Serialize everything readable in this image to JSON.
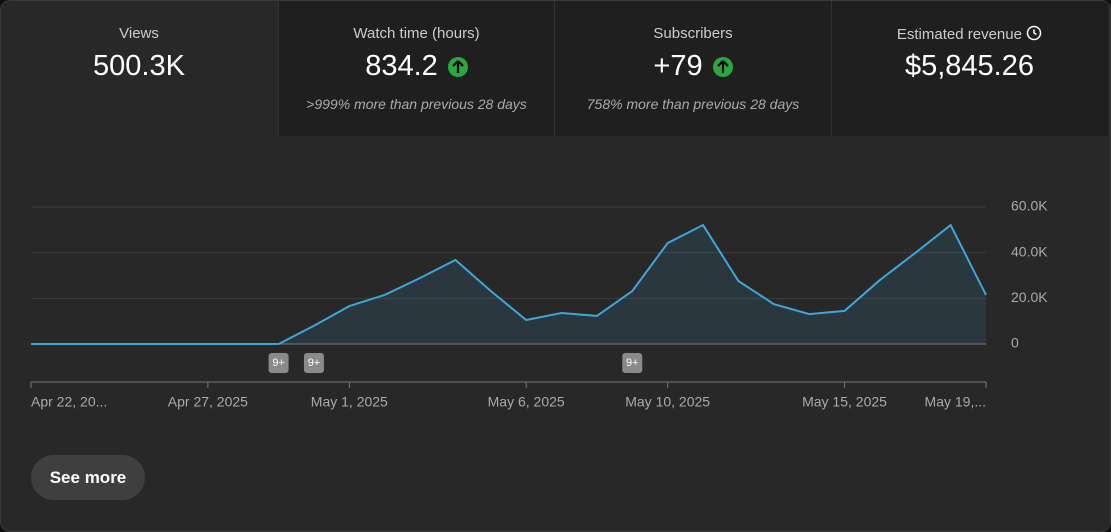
{
  "metrics": [
    {
      "label": "Views",
      "value": "500.3K"
    },
    {
      "label": "Watch time (hours)",
      "value": "834.2",
      "change": ">999% more than previous 28 days"
    },
    {
      "label": "Subscribers",
      "value": "+79",
      "change": "758% more than previous 28 days"
    },
    {
      "label": "Estimated revenue",
      "value": "$5,845.26"
    }
  ],
  "chart_data": {
    "type": "line",
    "categories": [
      "Apr 22, 20...",
      null,
      null,
      null,
      null,
      "Apr 27, 2025",
      null,
      null,
      null,
      "May 1, 2025",
      null,
      null,
      null,
      null,
      "May 6, 2025",
      null,
      null,
      null,
      "May 10, 2025",
      null,
      null,
      null,
      null,
      "May 15, 2025",
      null,
      null,
      null,
      "May 19,..."
    ],
    "series": [
      {
        "name": "Views",
        "color": "#3ea6d9",
        "values": [
          0,
          0,
          0,
          0,
          0,
          0,
          0,
          0,
          8000,
          16600,
          21500,
          28900,
          36800,
          23200,
          10500,
          13600,
          12300,
          23200,
          44200,
          52100,
          27600,
          17500,
          13100,
          14500,
          28000,
          39900,
          52100,
          21500
        ]
      }
    ],
    "ylim": [
      0,
      60000
    ],
    "yticks": [
      0,
      {
        "value": 20000,
        "label": "20.0K"
      },
      {
        "value": 40000,
        "label": "40.0K"
      },
      {
        "value": 60000,
        "label": "60.0K"
      }
    ],
    "grid": true,
    "annotations": [
      {
        "index": 7,
        "text": "9+"
      },
      {
        "index": 8,
        "text": "9+"
      },
      {
        "index": 17,
        "text": "9+"
      }
    ]
  },
  "button": "See more"
}
